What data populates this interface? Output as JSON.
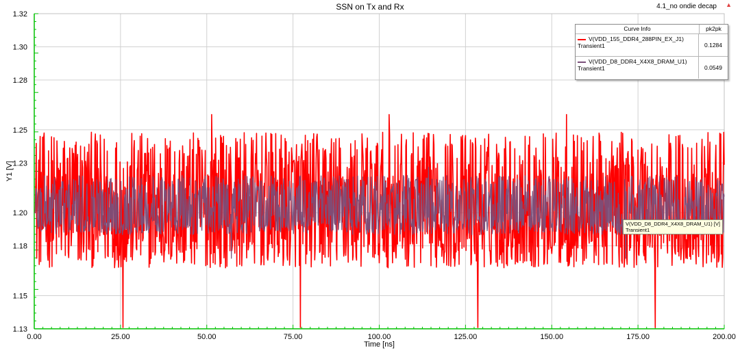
{
  "chart_data": {
    "type": "line",
    "title": "SSN on Tx and Rx",
    "xlabel": "Time [ns]",
    "ylabel": "Y1 [V]",
    "xlim": [
      0,
      200
    ],
    "ylim": [
      1.13,
      1.32
    ],
    "x_ticks": [
      "0.00",
      "25.00",
      "50.00",
      "75.00",
      "100.00",
      "125.00",
      "150.00",
      "175.00",
      "200.00"
    ],
    "y_ticks": [
      "1.13",
      "1.15",
      "1.18",
      "1.20",
      "1.23",
      "1.25",
      "1.28",
      "1.30",
      "1.32"
    ],
    "grid": true,
    "legend_position": "top-right",
    "series": [
      {
        "name": "V(VDD_155_DDR4_288PIN_EX_J1)",
        "sub": "Transient1",
        "color": "#ff0000",
        "nominal": 1.2,
        "min": 1.1308,
        "max": 1.2592,
        "pk2pk": "0.1284"
      },
      {
        "name": "V(VDD_D8_DDR4_X4X8_DRAM_U1)",
        "sub": "Transient1",
        "color": "#7a4f7a",
        "nominal": 1.2,
        "min": 1.1725,
        "max": 1.2274,
        "pk2pk": "0.0549"
      }
    ]
  },
  "header": {
    "corner_label": "4.1_no ondie decap"
  },
  "legend": {
    "col1": "Curve Info",
    "col2": "pk2pk",
    "rows": [
      {
        "name": "V(VDD_155_DDR4_288PIN_EX_J1)",
        "sub": "Transient1",
        "value": "0.1284"
      },
      {
        "name": "V(VDD_D8_DDR4_X4X8_DRAM_U1)",
        "sub": "Transient1",
        "value": "0.0549"
      }
    ]
  },
  "tooltip": {
    "line1": "V(VDD_D8_DDR4_X4X8_DRAM_U1) [V]",
    "line2": "Transient1"
  },
  "colors": {
    "grid": "#d0d0d0",
    "axis_green": "#00c000",
    "series1": "#ff0000",
    "series2": "#7a4f7a"
  }
}
